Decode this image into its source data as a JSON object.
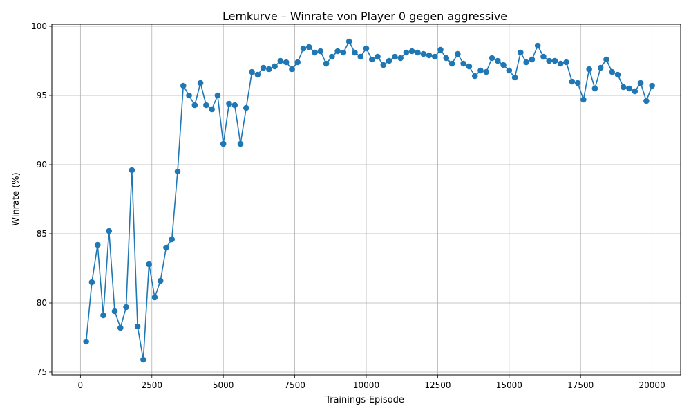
{
  "chart_data": {
    "type": "line",
    "title": "Lernkurve – Winrate von Player 0 gegen aggressive",
    "xlabel": "Trainings-Episode",
    "ylabel": "Winrate (%)",
    "xlim": [
      -1000,
      21000
    ],
    "ylim": [
      74.8,
      100.15
    ],
    "grid": true,
    "xticks": [
      0,
      2500,
      5000,
      7500,
      10000,
      12500,
      15000,
      17500,
      20000
    ],
    "xtick_labels": [
      "0",
      "2500",
      "5000",
      "7500",
      "10000",
      "12500",
      "15000",
      "17500",
      "20000"
    ],
    "yticks": [
      75,
      80,
      85,
      90,
      95,
      100
    ],
    "ytick_labels": [
      "75",
      "80",
      "85",
      "90",
      "95",
      "100"
    ],
    "series": [
      {
        "color": "#1f77b4",
        "marker": "circle",
        "x": [
          200,
          400,
          600,
          800,
          1000,
          1200,
          1400,
          1600,
          1800,
          2000,
          2200,
          2400,
          2600,
          2800,
          3000,
          3200,
          3400,
          3600,
          3800,
          4000,
          4200,
          4400,
          4600,
          4800,
          5000,
          5200,
          5400,
          5600,
          5800,
          6000,
          6200,
          6400,
          6600,
          6800,
          7000,
          7200,
          7400,
          7600,
          7800,
          8000,
          8200,
          8400,
          8600,
          8800,
          9000,
          9200,
          9400,
          9600,
          9800,
          10000,
          10200,
          10400,
          10600,
          10800,
          11000,
          11200,
          11400,
          11600,
          11800,
          12000,
          12200,
          12400,
          12600,
          12800,
          13000,
          13200,
          13400,
          13600,
          13800,
          14000,
          14200,
          14400,
          14600,
          14800,
          15000,
          15200,
          15400,
          15600,
          15800,
          16000,
          16200,
          16400,
          16600,
          16800,
          17000,
          17200,
          17400,
          17600,
          17800,
          18000,
          18200,
          18400,
          18600,
          18800,
          19000,
          19200,
          19400,
          19600,
          19800,
          20000
        ],
        "values": [
          77.2,
          81.5,
          84.2,
          79.1,
          85.2,
          79.4,
          78.2,
          79.7,
          89.6,
          78.3,
          75.9,
          82.8,
          80.4,
          81.6,
          84.0,
          84.6,
          89.5,
          95.7,
          95.0,
          94.3,
          95.9,
          94.3,
          94.0,
          95.0,
          91.5,
          94.4,
          94.3,
          91.5,
          94.1,
          96.7,
          96.5,
          97.0,
          96.9,
          97.1,
          97.5,
          97.4,
          96.9,
          97.4,
          98.4,
          98.5,
          98.1,
          98.2,
          97.3,
          97.8,
          98.2,
          98.1,
          98.9,
          98.1,
          97.8,
          98.4,
          97.6,
          97.8,
          97.2,
          97.5,
          97.8,
          97.7,
          98.1,
          98.2,
          98.1,
          98.0,
          97.9,
          97.8,
          98.3,
          97.7,
          97.3,
          98.0,
          97.3,
          97.1,
          96.4,
          96.8,
          96.7,
          97.7,
          97.5,
          97.2,
          96.8,
          96.3,
          98.1,
          97.4,
          97.6,
          98.6,
          97.8,
          97.5,
          97.5,
          97.3,
          97.4,
          96.0,
          95.9,
          94.7,
          96.9,
          95.5,
          97.0,
          97.6,
          96.7,
          96.5,
          95.6,
          95.5,
          95.3,
          95.9,
          94.6,
          95.7
        ]
      }
    ]
  }
}
